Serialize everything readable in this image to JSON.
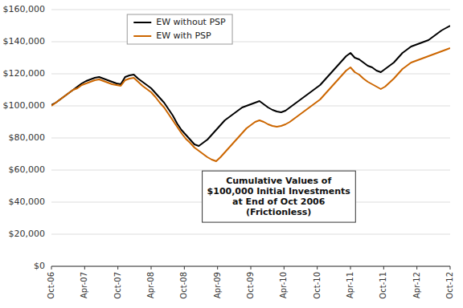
{
  "chart_data": {
    "type": "line",
    "annotation": "Cumulative Values of\n$100,000 Initial Investments\nat End of Oct 2006\n(Frictionless)",
    "x": [
      0,
      1,
      2,
      3,
      4,
      5,
      6,
      7,
      8,
      9,
      10,
      11,
      12,
      13,
      14,
      15,
      16,
      17,
      18,
      19,
      20,
      21,
      22,
      23,
      24,
      25,
      26,
      27,
      28,
      29,
      30,
      31,
      32,
      33,
      34,
      35,
      36,
      37,
      38,
      39,
      40,
      41,
      42,
      43,
      44,
      45,
      46,
      47,
      48,
      49,
      50,
      51,
      52,
      53,
      54,
      55,
      56,
      57,
      58,
      59,
      60,
      61,
      62,
      63,
      64,
      65,
      66,
      67,
      68,
      69,
      70,
      71,
      72,
      73,
      74,
      75,
      76,
      77,
      78,
      79,
      80,
      81,
      82,
      83,
      84,
      85,
      86,
      87,
      88,
      89,
      90,
      91,
      92
    ],
    "xlim": [
      0,
      92
    ],
    "xticks": [
      {
        "value": 0,
        "label": "Oct-06"
      },
      {
        "value": 7.666666666666667,
        "label": "Apr-07"
      },
      {
        "value": 15.333333333333334,
        "label": "Oct-07"
      },
      {
        "value": 23,
        "label": "Apr-08"
      },
      {
        "value": 30.666666666666668,
        "label": "Oct-08"
      },
      {
        "value": 38.333333333333336,
        "label": "Apr-09"
      },
      {
        "value": 46,
        "label": "Oct-09"
      },
      {
        "value": 53.66666666666667,
        "label": "Apr-10"
      },
      {
        "value": 61.333333333333336,
        "label": "Oct-10"
      },
      {
        "value": 69,
        "label": "Apr-11"
      },
      {
        "value": 76.66666666666667,
        "label": "Oct-11"
      },
      {
        "value": 84.33333333333334,
        "label": "Apr-12"
      },
      {
        "value": 92,
        "label": "Oct-12"
      }
    ],
    "ylim": [
      0,
      160000
    ],
    "yticks": [
      {
        "value": 0,
        "label": "$0"
      },
      {
        "value": 20000,
        "label": "$20,000"
      },
      {
        "value": 40000,
        "label": "$40,000"
      },
      {
        "value": 60000,
        "label": "$60,000"
      },
      {
        "value": 80000,
        "label": "$80,000"
      },
      {
        "value": 100000,
        "label": "$100,000"
      },
      {
        "value": 120000,
        "label": "$120,000"
      },
      {
        "value": 140000,
        "label": "$140,000"
      },
      {
        "value": 160000,
        "label": "$160,000"
      }
    ],
    "grid": true,
    "legend": "upper left",
    "series": [
      {
        "name": "EW without PSP",
        "color": "#000000",
        "values": [
          100500,
          102000,
          104000,
          106000,
          108000,
          110000,
          112000,
          114000,
          115500,
          116500,
          117500,
          118000,
          117000,
          116000,
          115000,
          114000,
          113500,
          118000,
          119000,
          119500,
          117000,
          115000,
          113000,
          111000,
          108000,
          105000,
          102000,
          98000,
          94000,
          89000,
          85000,
          82000,
          79000,
          76000,
          75000,
          77000,
          79000,
          82000,
          85000,
          88000,
          91000,
          93000,
          95000,
          97000,
          99000,
          100000,
          101000,
          102000,
          103000,
          101000,
          99000,
          97500,
          96500,
          96000,
          97000,
          99000,
          101000,
          103000,
          105000,
          107000,
          109000,
          111000,
          113000,
          116000,
          119000,
          122000,
          125000,
          128000,
          131000,
          133000,
          130000,
          129000,
          127000,
          125000,
          124000,
          122000,
          121000,
          123000,
          125000,
          127000,
          130000,
          133000,
          135000,
          137000,
          138000,
          139000,
          140000,
          141000,
          143000,
          145000,
          147000,
          148500,
          150000
        ]
      },
      {
        "name": "EW with PSP",
        "color": "#cc6600",
        "values": [
          100000,
          102000,
          104000,
          106000,
          108000,
          110000,
          111000,
          113000,
          114000,
          115000,
          116000,
          116500,
          115500,
          114500,
          113500,
          113000,
          112500,
          116000,
          117000,
          117500,
          115000,
          112500,
          110500,
          108500,
          105500,
          102000,
          99000,
          95000,
          91000,
          87000,
          83000,
          79500,
          77000,
          74000,
          72000,
          70000,
          68000,
          66500,
          65500,
          68000,
          71000,
          74000,
          77000,
          80000,
          83000,
          86000,
          88000,
          90000,
          91000,
          90000,
          88500,
          87500,
          87000,
          87500,
          88500,
          90000,
          92000,
          94000,
          96000,
          98000,
          100000,
          102000,
          104000,
          107000,
          110000,
          113000,
          116000,
          119000,
          122000,
          124000,
          121000,
          119500,
          117000,
          115000,
          113500,
          112000,
          110500,
          112000,
          114500,
          117000,
          120000,
          123000,
          125000,
          127000,
          128000,
          129000,
          130000,
          131000,
          132000,
          133000,
          134000,
          135000,
          136000
        ]
      }
    ]
  }
}
